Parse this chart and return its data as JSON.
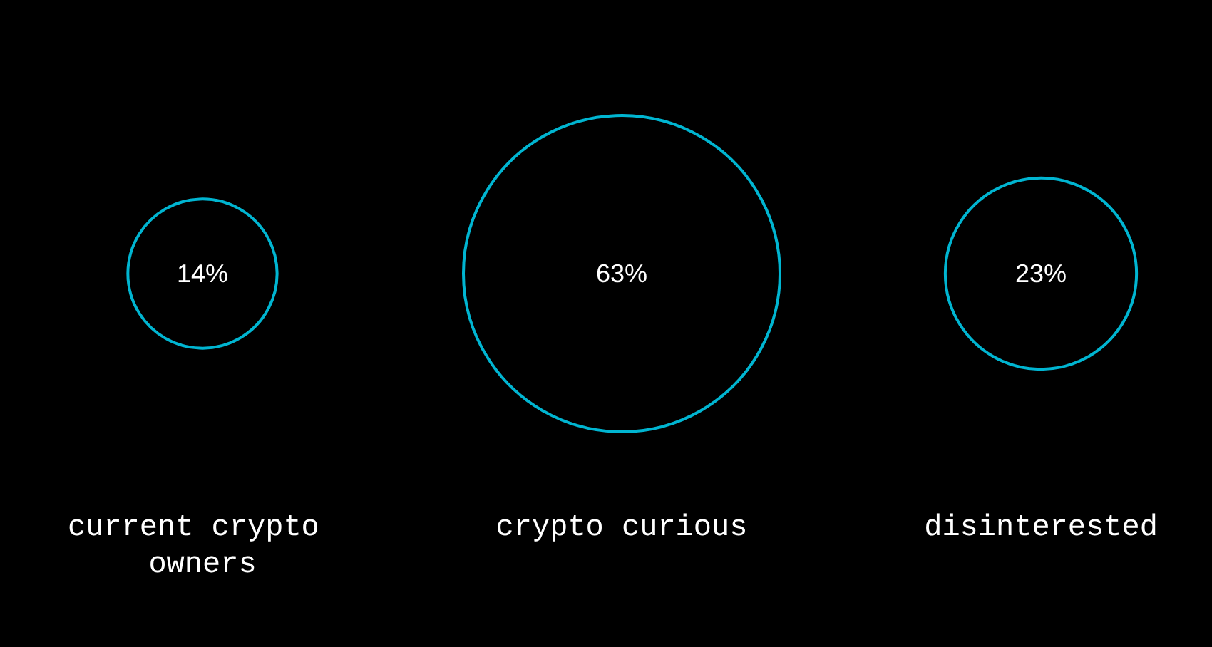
{
  "chart_data": {
    "type": "other",
    "categories": [
      "current crypto owners",
      "crypto curious",
      "disinterested"
    ],
    "values": [
      14,
      63,
      23
    ],
    "value_labels": [
      "14%",
      "63%",
      "23%"
    ],
    "color": "#00b5d1"
  }
}
